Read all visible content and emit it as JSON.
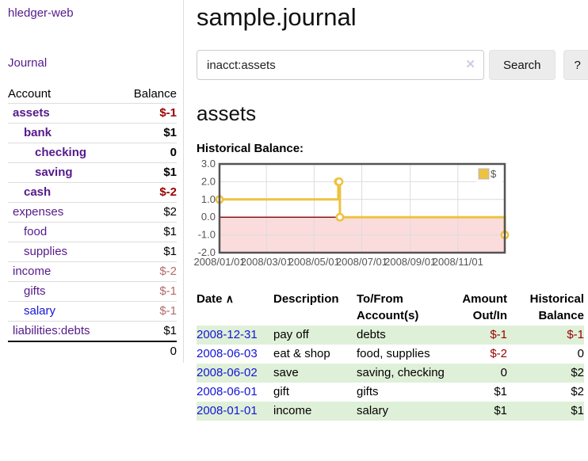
{
  "sidebar": {
    "app_title": "hledger-web",
    "nav": {
      "journal": "Journal"
    },
    "accounts_table": {
      "headers": {
        "account": "Account",
        "balance": "Balance"
      },
      "rows": [
        {
          "name": "assets",
          "balance": "$-1",
          "indent": 0,
          "strong": true
        },
        {
          "name": "bank",
          "balance": "$1",
          "indent": 1,
          "strong": true
        },
        {
          "name": "checking",
          "balance": "0",
          "indent": 2,
          "strong": true
        },
        {
          "name": "saving",
          "balance": "$1",
          "indent": 2,
          "strong": true
        },
        {
          "name": "cash",
          "balance": "$-2",
          "indent": 1,
          "strong": true
        },
        {
          "name": "expenses",
          "balance": "$2",
          "indent": 0,
          "strong": false
        },
        {
          "name": "food",
          "balance": "$1",
          "indent": 1,
          "strong": false
        },
        {
          "name": "supplies",
          "balance": "$1",
          "indent": 1,
          "strong": false
        },
        {
          "name": "income",
          "balance": "$-2",
          "indent": 0,
          "strong": false
        },
        {
          "name": "gifts",
          "balance": "$-1",
          "indent": 1,
          "strong": false
        },
        {
          "name": "salary",
          "balance": "$-1",
          "indent": 1,
          "strong": false,
          "link_color": "blue"
        },
        {
          "name": "liabilities:debts",
          "balance": "$1",
          "indent": 0,
          "strong": false
        }
      ],
      "total": "0"
    }
  },
  "main": {
    "title": "sample.journal",
    "search": {
      "value": "inacct:assets",
      "clear_icon": "✕",
      "button": "Search",
      "help_button": "?"
    },
    "account_heading": "assets",
    "chart_label": "Historical Balance:",
    "register_table": {
      "sort_icon": "∧",
      "headers": {
        "date": "Date",
        "description": "Description",
        "accounts": "To/From Account(s)",
        "amount": "Amount Out/In",
        "balance": "Historical Balance"
      },
      "rows": [
        {
          "date": "2008-12-31",
          "description": "pay off",
          "accounts": "debts",
          "amount": "$-1",
          "balance": "$-1"
        },
        {
          "date": "2008-06-03",
          "description": "eat & shop",
          "accounts": "food, supplies",
          "amount": "$-2",
          "balance": "0"
        },
        {
          "date": "2008-06-02",
          "description": "save",
          "accounts": "saving, checking",
          "amount": "0",
          "balance": "$2"
        },
        {
          "date": "2008-06-01",
          "description": "gift",
          "accounts": "gifts",
          "amount": "$1",
          "balance": "$2"
        },
        {
          "date": "2008-01-01",
          "description": "income",
          "accounts": "salary",
          "amount": "$1",
          "balance": "$1"
        }
      ]
    }
  },
  "chart_data": {
    "type": "line",
    "step": true,
    "title": "Historical Balance",
    "series": [
      {
        "name": "$",
        "color": "#edc240",
        "points": [
          [
            "2008-01-01",
            1
          ],
          [
            "2008-06-01",
            2
          ],
          [
            "2008-06-02",
            2
          ],
          [
            "2008-06-03",
            0
          ],
          [
            "2008-12-31",
            -1
          ]
        ]
      }
    ],
    "x_ticks": [
      "2008/01/01",
      "2008/03/01",
      "2008/05/01",
      "2008/07/01",
      "2008/09/01",
      "2008/11/01"
    ],
    "y_ticks": [
      3.0,
      2.0,
      1.0,
      0.0,
      -1.0,
      -2.0
    ],
    "xlim": [
      "2008-01-01",
      "2008-12-31"
    ],
    "ylim": [
      -2,
      3
    ],
    "grid": true,
    "legend_position": "top-right",
    "colors": {
      "negative_region": "#fbdcdc",
      "zero_line": "#8b1414",
      "gridline": "#dcdcdc",
      "border": "#545454",
      "marker_fill": "#ffffff"
    }
  }
}
